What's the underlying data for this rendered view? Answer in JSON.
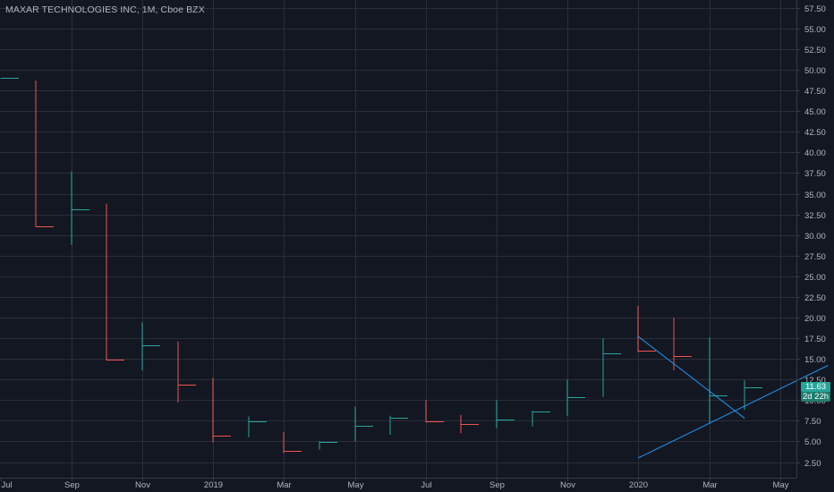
{
  "header": {
    "title": "MAXAR TECHNOLOGIES INC, 1M, Cboe BZX"
  },
  "badges": {
    "price": "11.63",
    "countdown": "2d 22h"
  },
  "colors": {
    "background": "#131722",
    "grid": "#2a2e39",
    "text": "#b2b5be",
    "up": "#26a69a",
    "down": "#ef5350",
    "trendline": "#2196f3",
    "price_badge": "#26a69a",
    "countdown_badge": "#1e7d6f"
  },
  "chart_data": {
    "type": "ohlc",
    "interval": "1M",
    "x_tick_labels": [
      "Jul",
      "Sep",
      "Nov",
      "2019",
      "Mar",
      "May",
      "Jul",
      "Sep",
      "Nov",
      "2020",
      "Mar",
      "May"
    ],
    "y_tick_labels": [
      "2.50",
      "5.00",
      "7.50",
      "10.00",
      "12.50",
      "15.00",
      "17.50",
      "20.00",
      "22.50",
      "25.00",
      "27.50",
      "30.00",
      "32.50",
      "35.00",
      "37.50",
      "40.00",
      "42.50",
      "45.00",
      "47.50",
      "50.00",
      "52.50",
      "55.00",
      "57.50"
    ],
    "ylim": [
      0.2,
      57.8
    ],
    "grid": true,
    "bars": [
      {
        "month": "2018-07",
        "open": 49.0,
        "high": 49.0,
        "low": 49.0,
        "close": 49.0
      },
      {
        "month": "2018-08",
        "open": 48.7,
        "high": 48.7,
        "low": 31.0,
        "close": 31.1
      },
      {
        "month": "2018-09",
        "open": 30.8,
        "high": 37.7,
        "low": 28.8,
        "close": 33.1
      },
      {
        "month": "2018-10",
        "open": 33.8,
        "high": 33.8,
        "low": 14.8,
        "close": 14.9
      },
      {
        "month": "2018-11",
        "open": 16.6,
        "high": 19.4,
        "low": 13.6,
        "close": 16.6
      },
      {
        "month": "2018-12",
        "open": 17.1,
        "high": 17.1,
        "low": 9.7,
        "close": 11.9
      },
      {
        "month": "2019-01",
        "open": 12.7,
        "high": 12.7,
        "low": 4.9,
        "close": 5.7
      },
      {
        "month": "2019-02",
        "open": 7.2,
        "high": 8.0,
        "low": 5.5,
        "close": 7.4
      },
      {
        "month": "2019-03",
        "open": 6.1,
        "high": 6.1,
        "low": 3.6,
        "close": 3.9
      },
      {
        "month": "2019-04",
        "open": 4.9,
        "high": 5.0,
        "low": 4.0,
        "close": 4.9
      },
      {
        "month": "2019-05",
        "open": 6.9,
        "high": 9.2,
        "low": 5.0,
        "close": 6.9
      },
      {
        "month": "2019-06",
        "open": 7.8,
        "high": 8.1,
        "low": 5.8,
        "close": 7.9
      },
      {
        "month": "2019-07",
        "open": 7.5,
        "high": 10.0,
        "low": 7.3,
        "close": 7.4
      },
      {
        "month": "2019-08",
        "open": 7.3,
        "high": 8.2,
        "low": 6.0,
        "close": 7.1
      },
      {
        "month": "2019-09",
        "open": 7.6,
        "high": 10.0,
        "low": 6.6,
        "close": 7.6
      },
      {
        "month": "2019-10",
        "open": 8.0,
        "high": 8.7,
        "low": 6.8,
        "close": 8.6
      },
      {
        "month": "2019-11",
        "open": 10.3,
        "high": 12.5,
        "low": 8.1,
        "close": 10.4
      },
      {
        "month": "2019-12",
        "open": 14.0,
        "high": 17.5,
        "low": 10.4,
        "close": 15.7
      },
      {
        "month": "2020-01",
        "open": 16.1,
        "high": 21.4,
        "low": 15.8,
        "close": 16.0
      },
      {
        "month": "2020-02",
        "open": 16.6,
        "high": 20.0,
        "low": 13.6,
        "close": 15.3
      },
      {
        "month": "2020-03",
        "open": 10.6,
        "high": 17.6,
        "low": 7.2,
        "close": 10.6
      },
      {
        "month": "2020-04",
        "open": 9.2,
        "high": 12.4,
        "low": 8.8,
        "close": 11.6
      }
    ],
    "trendlines": [
      {
        "from": {
          "month": "2020-01",
          "value": 17.7
        },
        "to": {
          "month": "2020-04",
          "value": 7.8
        }
      },
      {
        "from": {
          "month": "2020-01",
          "value": 3.0
        },
        "to": {
          "month": "2020-06",
          "value": 14.2
        }
      }
    ]
  }
}
